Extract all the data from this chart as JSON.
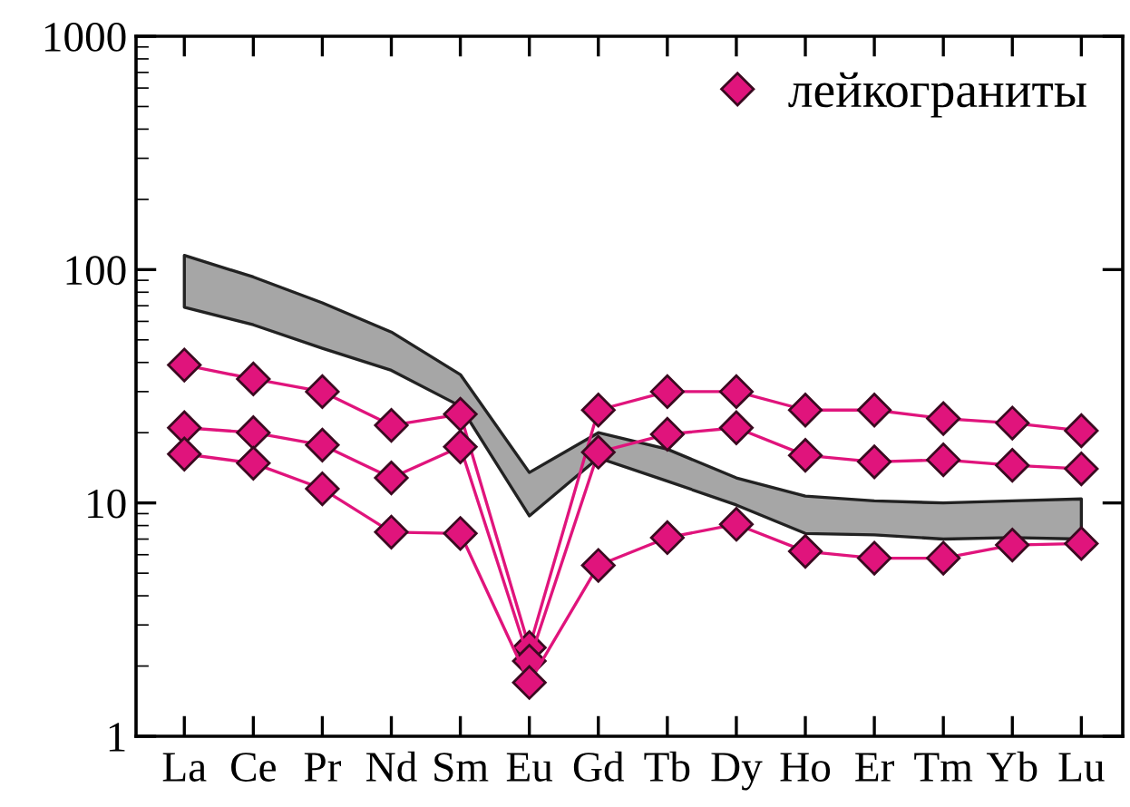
{
  "chart_data": {
    "type": "line",
    "categories": [
      "La",
      "Ce",
      "Pr",
      "Nd",
      "Sm",
      "Eu",
      "Gd",
      "Tb",
      "Dy",
      "Ho",
      "Er",
      "Tm",
      "Yb",
      "Lu"
    ],
    "log": "y",
    "ylim": [
      1,
      1000
    ],
    "yticks": [
      1,
      10,
      100,
      1000
    ],
    "grid": false,
    "legend": "top right",
    "marker": "diamond",
    "line_style": "solid",
    "series": [
      {
        "color": "#a6a6a6",
        "values": [
          null,
          null,
          null,
          null,
          null,
          null,
          null,
          null,
          null,
          null,
          null,
          null,
          null,
          null
        ],
        "upper": [
          115,
          93,
          72,
          54,
          35.5,
          13.5,
          20,
          17,
          12.8,
          10.7,
          10.2,
          10,
          10.2,
          10.4
        ],
        "lower": [
          69,
          58,
          46,
          37,
          26,
          8.8,
          15.6,
          12.4,
          9.8,
          7.4,
          7.3,
          7.0,
          7.1,
          7.0
        ]
      },
      {
        "name": "лейкограниты",
        "color": "#e0147c",
        "values": [
          39,
          34,
          30,
          21.5,
          24,
          2.4,
          25,
          30,
          30,
          25,
          25,
          23,
          22,
          20.4
        ]
      },
      {
        "color": "#e0147c",
        "values": [
          21,
          20,
          17.7,
          12.8,
          17.4,
          2.1,
          16.5,
          19.7,
          21,
          16,
          15,
          15.3,
          14.5,
          14
        ]
      },
      {
        "color": "#e0147c",
        "values": [
          16.2,
          14.8,
          11.5,
          7.5,
          7.4,
          1.7,
          5.4,
          7.1,
          8.1,
          6.2,
          5.8,
          5.8,
          6.6,
          6.7
        ]
      }
    ]
  }
}
